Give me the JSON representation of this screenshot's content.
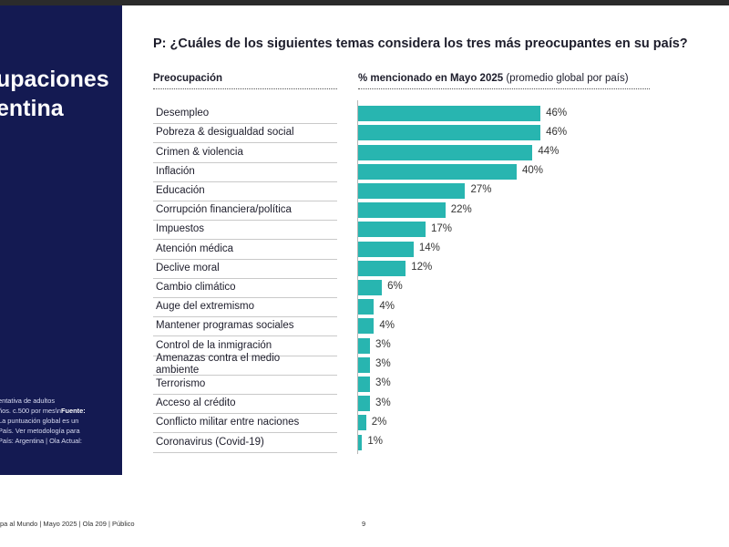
{
  "sidebar": {
    "title_line1": "upaciones",
    "title_line2": "entina",
    "note_lines": [
      "entativa de adultos",
      "ños. c.500 por mes\\n",
      "La puntuación global es un",
      "País. Ver metodología para",
      "País: Argentina | Ola Actual:"
    ],
    "note_bold": "Fuente:"
  },
  "question": "P: ¿Cuáles de los siguientes temas considera los tres más preocupantes en su país?",
  "chart_data": {
    "type": "bar",
    "orientation": "horizontal",
    "title": "P: ¿Cuáles de los siguientes temas considera los tres más preocupantes en su país?",
    "category_header": "Preocupación",
    "value_header": "% mencionado en Mayo 2025",
    "value_header_note": "(promedio global por país)",
    "unit": "%",
    "xlim": [
      0,
      56
    ],
    "categories": [
      "Desempleo",
      "Pobreza & desigualdad social",
      "Crimen & violencia",
      "Inflación",
      "Educación",
      "Corrupción financiera/política",
      "Impuestos",
      "Atención médica",
      "Declive moral",
      "Cambio climático",
      "Auge del extremismo",
      "Mantener programas sociales",
      "Control de la inmigración",
      "Amenazas contra el medio ambiente",
      "Terrorismo",
      "Acceso al crédito",
      "Conflicto militar entre naciones",
      "Coronavirus (Covid-19)"
    ],
    "category_lines": [
      [
        "Desempleo"
      ],
      [
        "Pobreza & desigualdad social"
      ],
      [
        "Crimen & violencia"
      ],
      [
        "Inflación"
      ],
      [
        "Educación"
      ],
      [
        "Corrupción financiera/política"
      ],
      [
        "Impuestos"
      ],
      [
        "Atención médica"
      ],
      [
        "Declive moral"
      ],
      [
        "Cambio climático"
      ],
      [
        "Auge del extremismo"
      ],
      [
        "Mantener programas sociales"
      ],
      [
        "Control de la inmigración"
      ],
      [
        "Amenazas contra el medio",
        "ambiente"
      ],
      [
        "Terrorismo"
      ],
      [
        "Acceso al crédito"
      ],
      [
        "Conflicto militar entre naciones"
      ],
      [
        "Coronavirus (Covid-19)"
      ]
    ],
    "values": [
      46,
      46,
      44,
      40,
      27,
      22,
      17,
      14,
      12,
      6,
      4,
      4,
      3,
      3,
      3,
      3,
      2,
      1
    ],
    "value_labels": [
      "46%",
      "46%",
      "44%",
      "40%",
      "27%",
      "22%",
      "17%",
      "14%",
      "12%",
      "6%",
      "4%",
      "4%",
      "3%",
      "3%",
      "3%",
      "3%",
      "2%",
      "1%"
    ],
    "bar_color": "#28b5b0"
  },
  "footer": {
    "left": "pa al Mundo | Mayo 2025 | Ola 209 | Público",
    "page": "9"
  },
  "colors": {
    "sidebar": "#141a52",
    "bar": "#28b5b0"
  }
}
